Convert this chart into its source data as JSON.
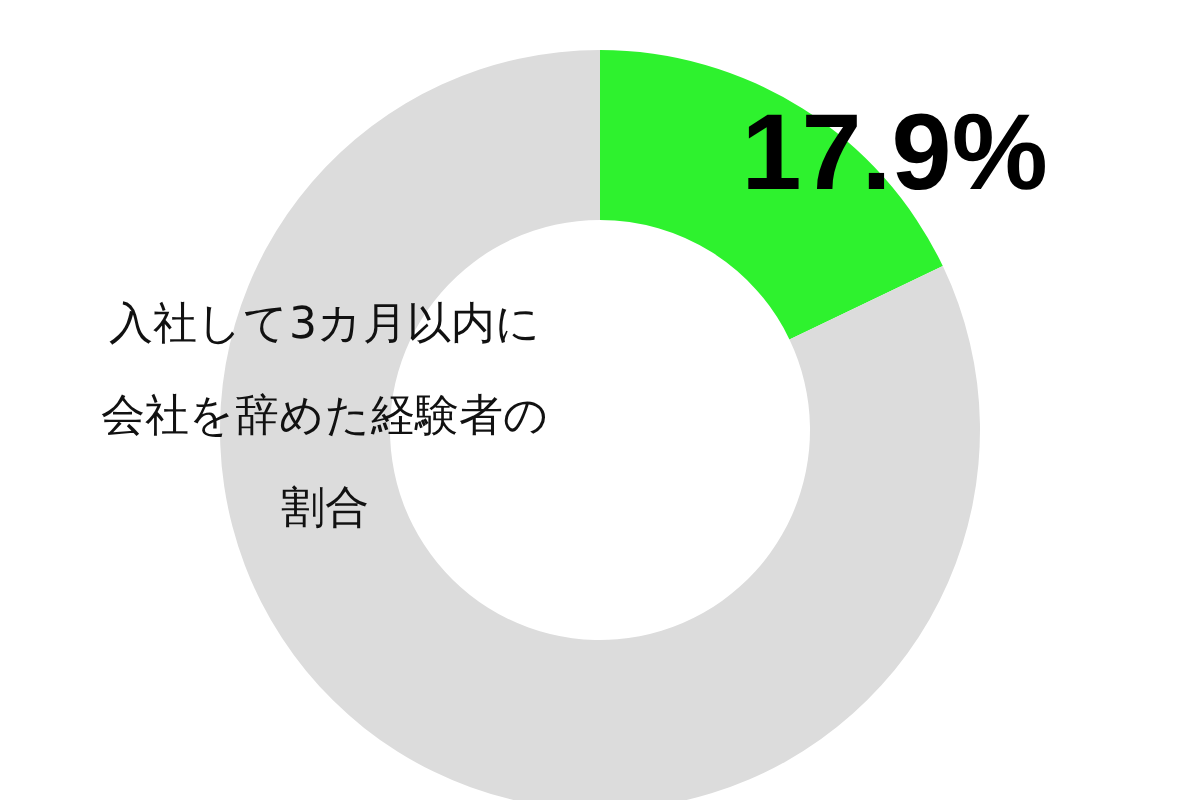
{
  "chart_data": {
    "type": "donut",
    "title": "入社して3カ月以内に会社を辞めた経験者の割合",
    "categories": [
      null,
      null
    ],
    "values": [
      17.9,
      82.1
    ],
    "colors": [
      "#2ef22e",
      "#dcdcdc"
    ],
    "value_labels": [
      "17.9%",
      null
    ]
  }
}
